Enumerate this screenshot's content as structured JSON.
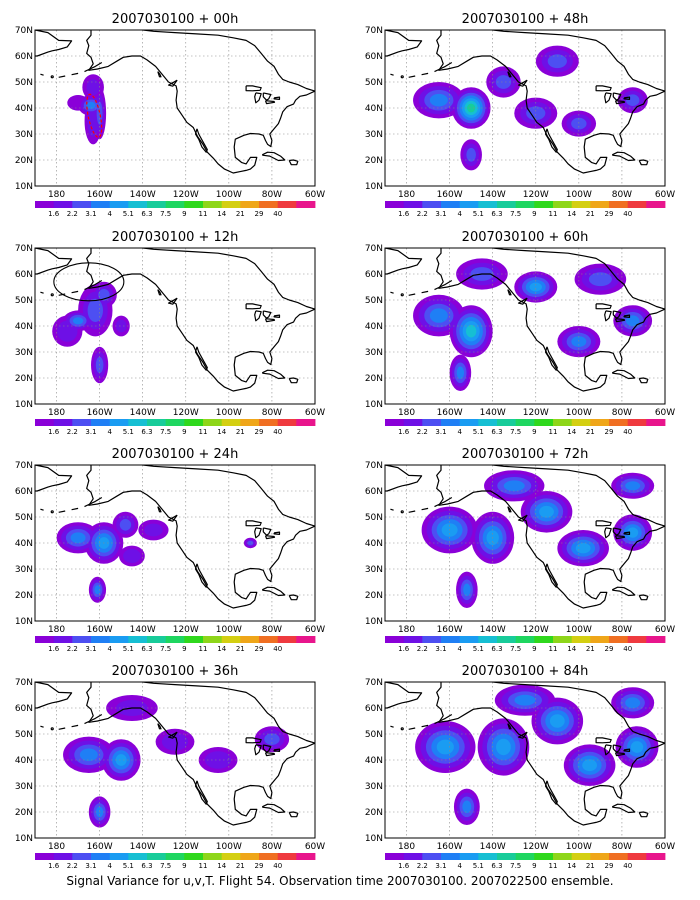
{
  "figure": {
    "caption": "Signal Variance for u,v,T. Flight 54. Observation time 2007030100. 2007022500 ensemble."
  },
  "axes": {
    "lat_labels": [
      "70N",
      "60N",
      "50N",
      "40N",
      "30N",
      "20N",
      "10N"
    ],
    "lon_labels": [
      "180",
      "160W",
      "140W",
      "120W",
      "100W",
      "80W",
      "60W"
    ]
  },
  "colorbar": {
    "labels": [
      "1.6",
      "2.2",
      "3.1",
      "4",
      "5.1",
      "6.3",
      "7.5",
      "9",
      "11",
      "14",
      "21",
      "29",
      "40"
    ],
    "colors": [
      "#8a00d8",
      "#6e10e6",
      "#4d4ff2",
      "#1f7ff5",
      "#1a9cf2",
      "#16bfd3",
      "#18cc9a",
      "#1ed660",
      "#2fd81d",
      "#8ed61a",
      "#d4cf12",
      "#efa619",
      "#f06f22",
      "#ef3a3f",
      "#e8158c"
    ]
  },
  "panels": [
    {
      "title": "2007030100 + 00h",
      "lead": "00h"
    },
    {
      "title": "2007030100 + 48h",
      "lead": "48h"
    },
    {
      "title": "2007030100 + 12h",
      "lead": "12h"
    },
    {
      "title": "2007030100 + 60h",
      "lead": "60h"
    },
    {
      "title": "2007030100 + 24h",
      "lead": "24h"
    },
    {
      "title": "2007030100 + 72h",
      "lead": "72h"
    },
    {
      "title": "2007030100 + 36h",
      "lead": "36h"
    },
    {
      "title": "2007030100 + 84h",
      "lead": "84h"
    }
  ],
  "map": {
    "lon_range": [
      170,
      300
    ],
    "lat_range": [
      10,
      70
    ],
    "grid": true,
    "coastline_color": "#000000"
  }
}
